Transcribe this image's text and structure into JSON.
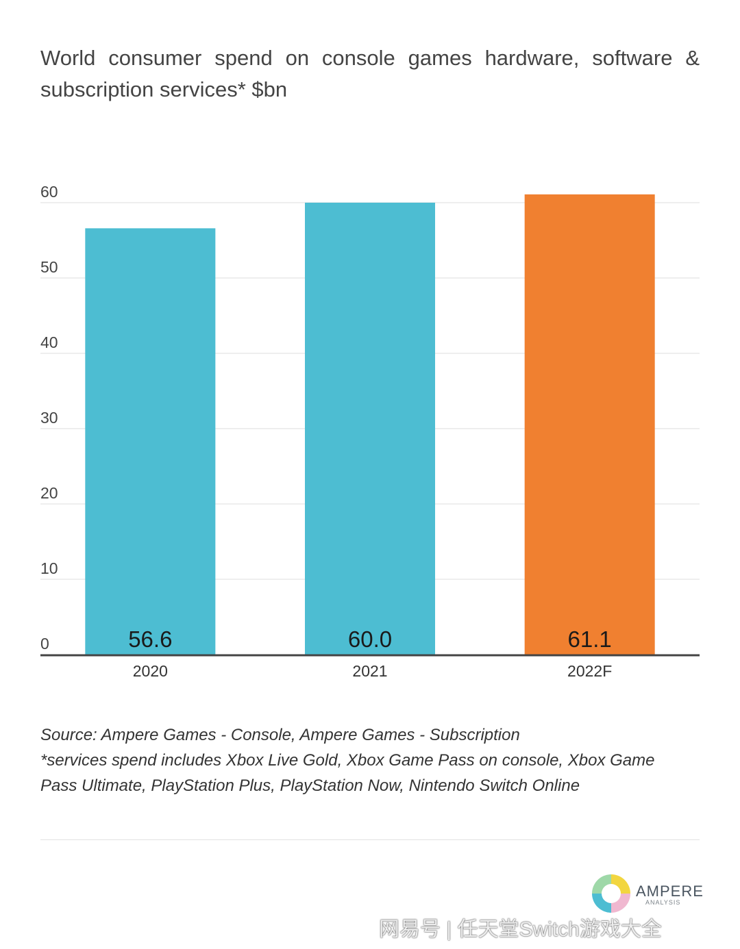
{
  "title": "World consumer spend on console games hardware, software & subscription services* $bn",
  "chart_data": {
    "type": "bar",
    "categories": [
      "2020",
      "2021",
      "2022F"
    ],
    "values": [
      56.6,
      60.0,
      61.1
    ],
    "value_labels": [
      "56.6",
      "60.0",
      "61.1"
    ],
    "colors": [
      "#4dbdd2",
      "#4dbdd2",
      "#f08030"
    ],
    "ylim": [
      0,
      60
    ],
    "yticks": [
      0,
      10,
      20,
      30,
      40,
      50,
      60
    ],
    "grid": true,
    "xlabel": "",
    "ylabel": ""
  },
  "notes": [
    "Source: Ampere Games - Console, Ampere Games - Subscription",
    "*services spend includes Xbox Live Gold, Xbox Game Pass on console, Xbox Game",
    "Pass Ultimate, PlayStation Plus, PlayStation Now, Nintendo Switch Online"
  ],
  "logo": {
    "name": "AMPERE",
    "subtitle": "ANALYSIS"
  },
  "watermark": "网易号 | 任天堂Switch游戏大全"
}
